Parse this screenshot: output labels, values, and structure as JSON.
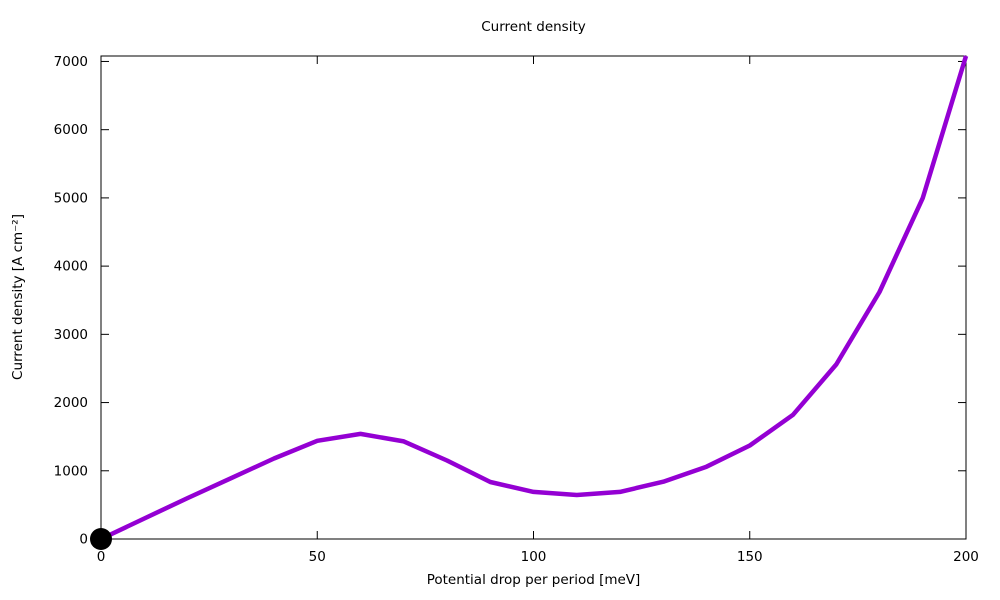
{
  "chart_data": {
    "type": "line",
    "title": "Current density",
    "xlabel": "Potential drop per period [meV]",
    "ylabel": "Current density [A cm⁻²]",
    "xlim": [
      0,
      200
    ],
    "ylim": [
      0,
      7080
    ],
    "xticks": [
      0,
      50,
      100,
      150,
      200
    ],
    "yticks": [
      0,
      1000,
      2000,
      3000,
      4000,
      5000,
      6000,
      7000
    ],
    "grid": false,
    "legend": "none",
    "frame": "full-box-with-mirrored-inward-ticks",
    "series": [
      {
        "name": "current-density-curve",
        "style": "thick-line",
        "color": "#9400d3",
        "x": [
          0,
          10,
          20,
          30,
          40,
          50,
          60,
          70,
          80,
          90,
          100,
          110,
          120,
          130,
          140,
          150,
          160,
          170,
          180,
          190,
          200
        ],
        "y": [
          0,
          300,
          600,
          890,
          1180,
          1440,
          1540,
          1430,
          1150,
          835,
          690,
          645,
          690,
          840,
          1060,
          1370,
          1820,
          2560,
          3620,
          5000,
          7080
        ]
      },
      {
        "name": "origin-data-point",
        "style": "filled-circle-marker",
        "color": "#000000",
        "x": [
          0
        ],
        "y": [
          0
        ]
      }
    ],
    "colors": {
      "line": "#9400d3",
      "marker": "#000000",
      "axis": "#000000",
      "text": "#000000",
      "background": "#ffffff"
    }
  }
}
